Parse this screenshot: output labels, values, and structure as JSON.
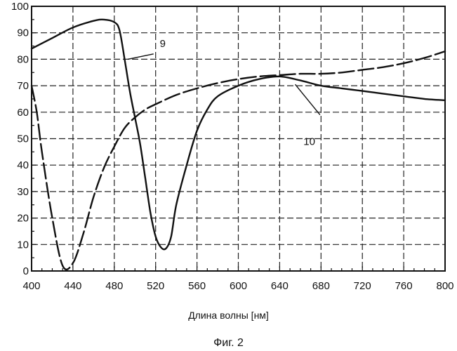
{
  "chart_data": {
    "type": "line",
    "title": "",
    "xlabel": "Длина волны [нм]",
    "ylabel": "",
    "xlim": [
      400,
      800
    ],
    "ylim": [
      0,
      100
    ],
    "grid": true,
    "x_ticks": [
      400,
      440,
      480,
      520,
      560,
      600,
      640,
      680,
      720,
      760,
      800
    ],
    "y_ticks": [
      0,
      10,
      20,
      30,
      40,
      50,
      60,
      70,
      80,
      90,
      100
    ],
    "series": [
      {
        "name": "9",
        "style": "solid",
        "x": [
          400,
          420,
          440,
          460,
          470,
          480,
          485,
          490,
          495,
          500,
          505,
          510,
          515,
          520,
          525,
          530,
          535,
          540,
          550,
          560,
          570,
          580,
          600,
          620,
          640,
          660,
          680,
          700,
          720,
          740,
          760,
          780,
          800
        ],
        "y": [
          84,
          88,
          92,
          94.5,
          95,
          94,
          91,
          80,
          68,
          58,
          48,
          35,
          22,
          13,
          9,
          8.5,
          13,
          25,
          40,
          53,
          61,
          66,
          70,
          72.5,
          73.5,
          72,
          70,
          69,
          68,
          67,
          66,
          65,
          64.5
        ]
      },
      {
        "name": "10",
        "style": "dashed",
        "x": [
          400,
          405,
          410,
          420,
          430,
          440,
          450,
          460,
          470,
          480,
          490,
          500,
          510,
          520,
          540,
          560,
          580,
          600,
          620,
          640,
          660,
          680,
          700,
          720,
          740,
          760,
          780,
          800
        ],
        "y": [
          70,
          60,
          45,
          20,
          2,
          3,
          14,
          28,
          39,
          47,
          54,
          58,
          61,
          63,
          66.5,
          69,
          71,
          72.5,
          73.5,
          74,
          74.5,
          74.5,
          75,
          76,
          77,
          78.5,
          80.5,
          83
        ]
      }
    ],
    "annotations": [
      {
        "text": "9",
        "series": "9"
      },
      {
        "text": "10",
        "series": "10"
      }
    ]
  },
  "figure": {
    "caption": "Фиг. 2"
  }
}
